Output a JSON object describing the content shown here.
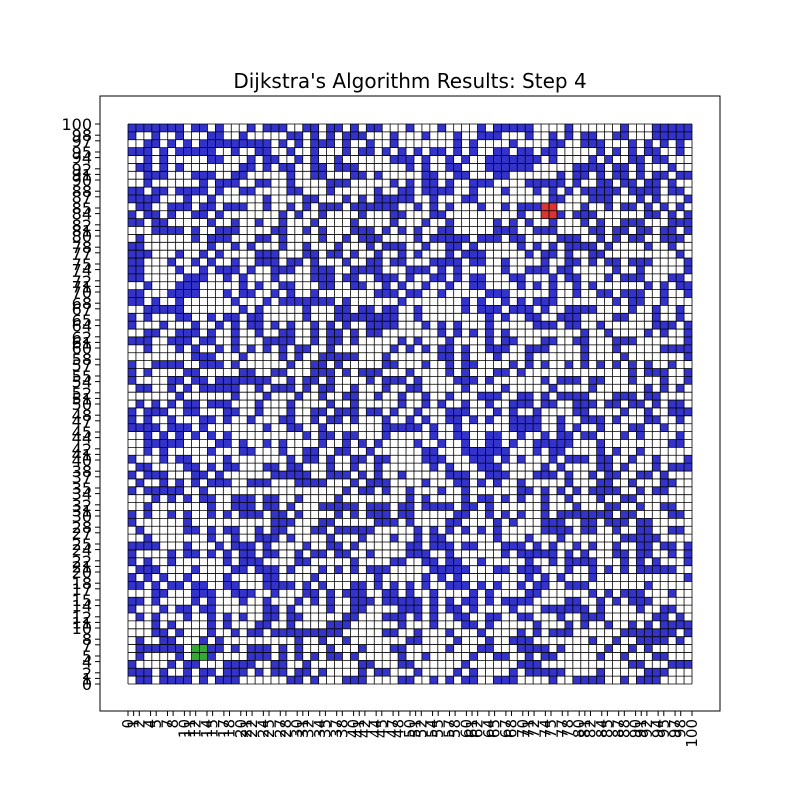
{
  "chart_data": {
    "type": "heatmap",
    "title": "Dijkstra's Algorithm Results: Step 4",
    "xlabel": "",
    "ylabel": "",
    "grid_size": 71,
    "xlim": [
      0,
      100
    ],
    "ylim": [
      0,
      100
    ],
    "x_tick_labels": [
      "0",
      "1",
      "2",
      "4",
      "5",
      "7",
      "8",
      "10",
      "11",
      "12",
      "14",
      "15",
      "17",
      "18",
      "20",
      "21",
      "22",
      "24",
      "25",
      "27",
      "28",
      "30",
      "31",
      "32",
      "34",
      "35",
      "37",
      "38",
      "40",
      "41",
      "42",
      "44",
      "45",
      "47",
      "48",
      "50",
      "51",
      "52",
      "54",
      "55",
      "57",
      "58",
      "60",
      "61",
      "62",
      "64",
      "65",
      "67",
      "68",
      "70",
      "71",
      "72",
      "74",
      "75",
      "77",
      "78",
      "80",
      "81",
      "82",
      "84",
      "85",
      "87",
      "88",
      "90",
      "91",
      "92",
      "94",
      "95",
      "97",
      "98",
      "100"
    ],
    "y_tick_labels": [
      "0",
      "1",
      "2",
      "4",
      "5",
      "7",
      "8",
      "10",
      "11",
      "12",
      "14",
      "15",
      "17",
      "18",
      "20",
      "21",
      "22",
      "24",
      "25",
      "27",
      "28",
      "30",
      "31",
      "32",
      "34",
      "35",
      "37",
      "38",
      "40",
      "41",
      "42",
      "44",
      "45",
      "47",
      "48",
      "50",
      "51",
      "52",
      "54",
      "55",
      "57",
      "58",
      "60",
      "61",
      "62",
      "64",
      "65",
      "67",
      "68",
      "70",
      "71",
      "72",
      "74",
      "75",
      "77",
      "78",
      "80",
      "81",
      "82",
      "84",
      "85",
      "87",
      "88",
      "90",
      "91",
      "92",
      "94",
      "95",
      "97",
      "98",
      "100"
    ],
    "legend": "none",
    "grid": true,
    "colors": {
      "empty": "#ffffff",
      "obstacle": "#3333cc",
      "start": "#33aa33",
      "goal": "#dd3333",
      "gridline": "#000000"
    },
    "cell_states": [
      "empty",
      "obstacle",
      "start",
      "goal"
    ],
    "obstacle_density": 0.42,
    "pattern_seed": 20240404,
    "start_cell": [
      12,
      5
    ],
    "goal_cell": [
      74,
      85
    ]
  }
}
